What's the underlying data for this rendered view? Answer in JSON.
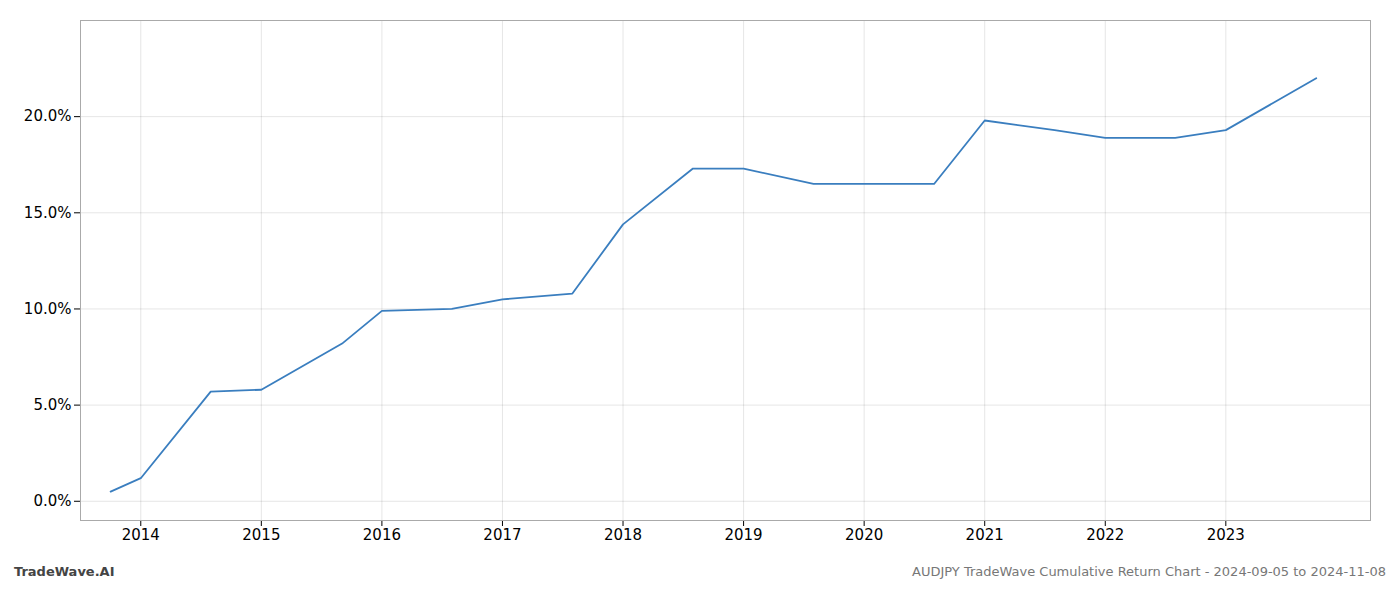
{
  "chart_data": {
    "type": "line",
    "x": [
      2013.75,
      2014.0,
      2014.58,
      2015.0,
      2015.67,
      2016.0,
      2016.58,
      2017.0,
      2017.58,
      2018.0,
      2018.58,
      2019.0,
      2019.58,
      2020.0,
      2020.58,
      2021.0,
      2021.58,
      2022.0,
      2022.58,
      2023.0,
      2023.75
    ],
    "values": [
      0.5,
      1.2,
      5.7,
      5.8,
      8.2,
      9.9,
      10.0,
      10.5,
      10.8,
      14.4,
      17.3,
      17.3,
      16.5,
      16.5,
      16.5,
      19.8,
      19.3,
      18.9,
      18.9,
      19.3,
      22.0
    ],
    "color": "#3a7ebf",
    "xlim": [
      2013.5,
      2024.2
    ],
    "xticks": [
      2014,
      2015,
      2016,
      2017,
      2018,
      2019,
      2020,
      2021,
      2022,
      2023
    ],
    "ylim": [
      -1.0,
      25
    ],
    "yticks": [
      {
        "value": 0.0,
        "label": "0.0%"
      },
      {
        "value": 5.0,
        "label": "5.0%"
      },
      {
        "value": 10.0,
        "label": "10.0%"
      },
      {
        "value": 15.0,
        "label": "15.0%"
      },
      {
        "value": 20.0,
        "label": "20.0%"
      }
    ],
    "grid": true,
    "annotations": [
      "TradeWave.AI",
      "AUDJPY TradeWave Cumulative Return Chart - 2024-09-05 to 2024-11-08"
    ]
  }
}
